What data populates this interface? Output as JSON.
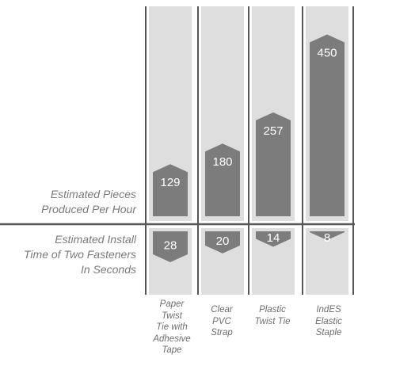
{
  "chart_data": {
    "type": "bar",
    "categories": [
      [
        "Paper",
        "Twist",
        "Tie with",
        "Adhesive",
        "Tape"
      ],
      [
        "Clear",
        "PVC",
        "Strap"
      ],
      [
        "Plastic",
        "Twist Tie"
      ],
      [
        "IndES",
        "Elastic",
        "Staple"
      ]
    ],
    "series": [
      {
        "name": "Estimated Pieces Produced Per Hour",
        "label_lines": [
          "Estimated Pieces",
          "Produced Per Hour"
        ],
        "values": [
          129,
          180,
          257,
          450
        ],
        "ylim": [
          0,
          500
        ],
        "direction": "up"
      },
      {
        "name": "Estimated Install Time of Two Fasteners In Seconds",
        "label_lines": [
          "Estimated Install",
          "Time of Two Fasteners",
          "In Seconds"
        ],
        "values": [
          28,
          20,
          14,
          8
        ],
        "ylim": [
          0,
          28
        ],
        "direction": "down"
      }
    ],
    "colors": {
      "background_track": "#dedede",
      "bar": "#7c7c7c",
      "axis": "#555555",
      "value_text": "#ffffff"
    },
    "grid": false,
    "legend": "none"
  }
}
